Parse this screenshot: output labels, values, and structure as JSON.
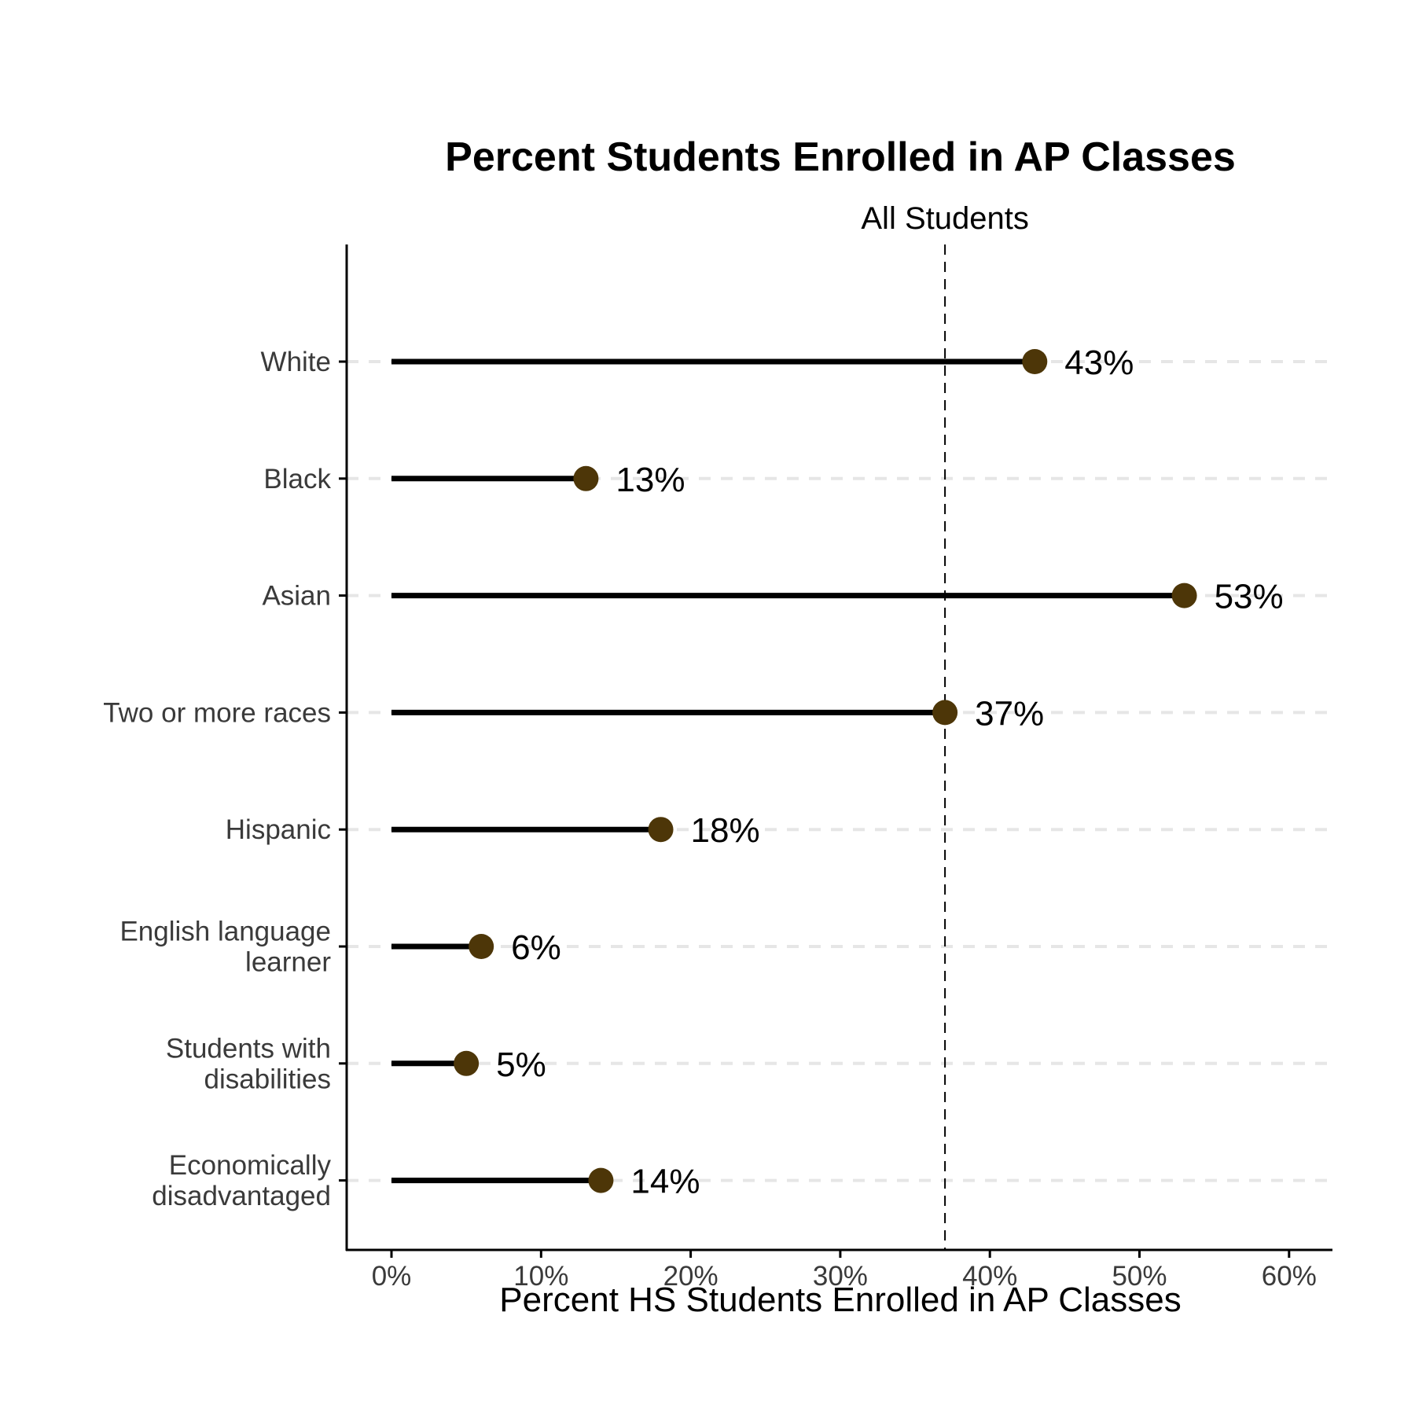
{
  "colors": {
    "point": "#4d3608",
    "stem": "#000000",
    "gridline": "#e6e6e6",
    "axis": "#000000"
  },
  "chart_data": {
    "type": "lollipop",
    "title": "Percent Students Enrolled in AP Classes",
    "xlabel": "Percent HS Students Enrolled in AP Classes",
    "ylabel": "",
    "xlim": [
      0,
      60
    ],
    "x_ticks": [
      0,
      10,
      20,
      30,
      40,
      50,
      60
    ],
    "x_tick_labels": [
      "0%",
      "10%",
      "20%",
      "30%",
      "40%",
      "50%",
      "60%"
    ],
    "categories": [
      "White",
      "Black",
      "Asian",
      "Two or more races",
      "Hispanic",
      "English language learner",
      "Students with disabilities",
      "Economically disadvantaged"
    ],
    "category_label_lines": [
      [
        "White"
      ],
      [
        "Black"
      ],
      [
        "Asian"
      ],
      [
        "Two or more races"
      ],
      [
        "Hispanic"
      ],
      [
        "English language",
        "learner"
      ],
      [
        "Students with",
        "disabilities"
      ],
      [
        "Economically",
        "disadvantaged"
      ]
    ],
    "values": [
      43,
      13,
      53,
      37,
      18,
      6,
      5,
      14
    ],
    "data_labels": [
      "43%",
      "13%",
      "53%",
      "37%",
      "18%",
      "6%",
      "5%",
      "14%"
    ],
    "reference_line": {
      "value": 37,
      "label": "All Students",
      "style": "dashed"
    },
    "grid": "horizontal dashed"
  }
}
